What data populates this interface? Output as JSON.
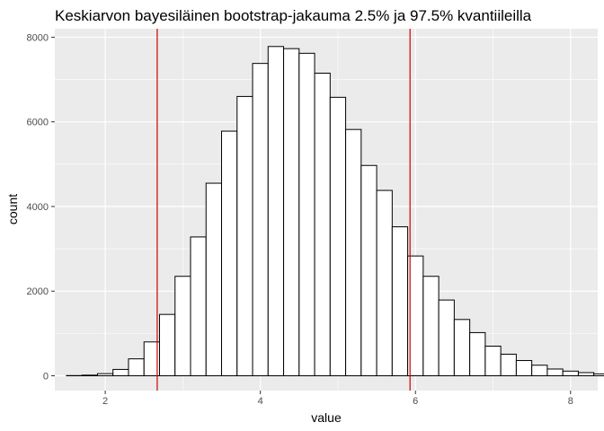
{
  "chart_data": {
    "type": "histogram",
    "title": "Keskiarvon bayesiläinen bootstrap-jakauma 2.5% ja 97.5% kvantiileilla",
    "xlabel": "value",
    "ylabel": "count",
    "xlim": [
      1.35,
      8.35
    ],
    "ylim": [
      -350,
      8200
    ],
    "x_ticks": [
      2,
      4,
      6,
      8
    ],
    "y_ticks": [
      0,
      2000,
      4000,
      6000,
      8000
    ],
    "bin_start": 1.5,
    "bin_width": 0.2,
    "counts": [
      5,
      15,
      50,
      150,
      400,
      800,
      1450,
      2350,
      3280,
      4550,
      5780,
      6600,
      7380,
      7780,
      7730,
      7620,
      7150,
      6580,
      5820,
      4970,
      4380,
      3520,
      2830,
      2350,
      1790,
      1330,
      1020,
      700,
      510,
      360,
      250,
      160,
      110,
      75,
      45,
      28,
      18,
      10,
      6,
      3
    ],
    "vlines": [
      {
        "x": 2.67,
        "color": "#cc0000",
        "label": "2.5%"
      },
      {
        "x": 5.93,
        "color": "#cc0000",
        "label": "97.5%"
      }
    ],
    "bar_fill": "#ffffff",
    "bar_outline": "#000000",
    "panel_background": "#ebebeb",
    "grid_color": "#ffffff",
    "grid": true,
    "legend": "none"
  }
}
